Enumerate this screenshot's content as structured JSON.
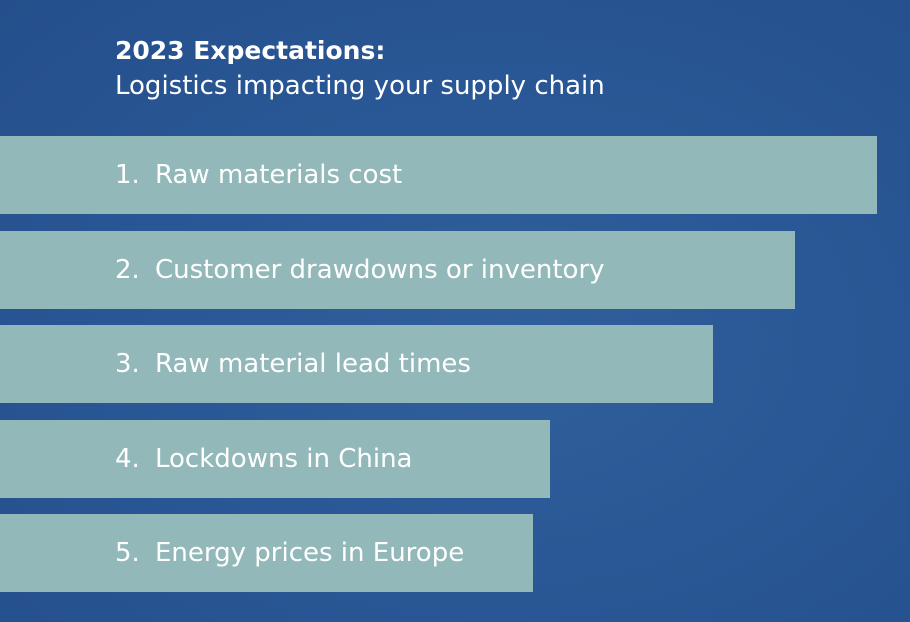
{
  "chart_data": {
    "type": "bar",
    "orientation": "horizontal",
    "title": "2023 Expectations:",
    "subtitle": "Logistics impacting your supply chain",
    "categories": [
      "Raw materials cost",
      "Customer drawdowns or inventory",
      "Raw material lead times",
      "Lockdowns in China",
      "Energy prices in Europe"
    ],
    "numbers": [
      "1.",
      "2.",
      "3.",
      "4.",
      "5."
    ],
    "ranks": [
      1,
      2,
      3,
      4,
      5
    ],
    "grid": false,
    "legend": "none"
  },
  "colors": {
    "background": "#2a5896",
    "bar": "#93b8b9",
    "text": "#ffffff"
  }
}
